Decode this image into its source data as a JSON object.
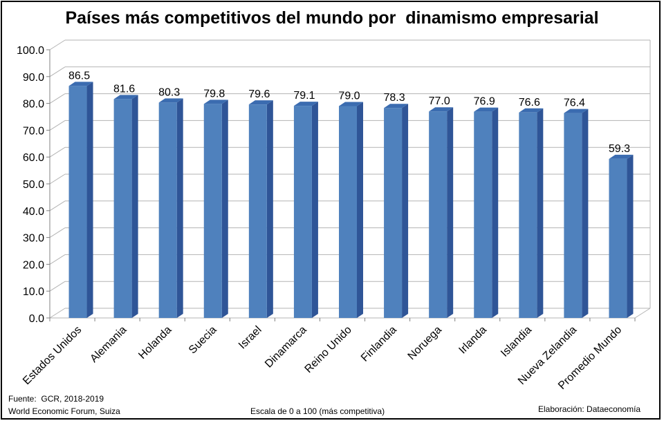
{
  "chart_data": {
    "type": "bar",
    "title": "Países más competitivos del mundo por  dinamismo empresarial",
    "categories": [
      "Estados Unidos",
      "Alemania",
      "Holanda",
      "Suecia",
      "Israel",
      "Dinamarca",
      "Reino Unido",
      "Finlandia",
      "Noruega",
      "Irlanda",
      "Islandia",
      "Nueva Zelandia",
      "Promedio Mundo"
    ],
    "values": [
      86.5,
      81.6,
      80.3,
      79.8,
      79.6,
      79.1,
      79.0,
      78.3,
      77.0,
      76.9,
      76.6,
      76.4,
      59.3
    ],
    "value_labels": [
      "86.5",
      "81.6",
      "80.3",
      "79.8",
      "79.6",
      "79.1",
      "79.0",
      "78.3",
      "77.0",
      "76.9",
      "76.6",
      "76.4",
      "59.3"
    ],
    "ylim": [
      0,
      100
    ],
    "yticks": [
      "0.0",
      "10.0",
      "20.0",
      "30.0",
      "40.0",
      "50.0",
      "60.0",
      "70.0",
      "80.0",
      "90.0",
      "100.0"
    ],
    "grid": true,
    "bar_style": "3d",
    "colors": {
      "bar_front": "#4F81BD",
      "bar_side": "#2F5597",
      "bar_top": "#3B6CB0",
      "grid": "#b3b3b3"
    }
  },
  "footer": {
    "source_line1": "Fuente:  GCR, 2018-2019",
    "source_line2": "World Economic Forum, Suiza",
    "scale_note": "Escala de 0 a 100 (más competitiva)",
    "credit": "Elaboración: Dataeconomía"
  }
}
